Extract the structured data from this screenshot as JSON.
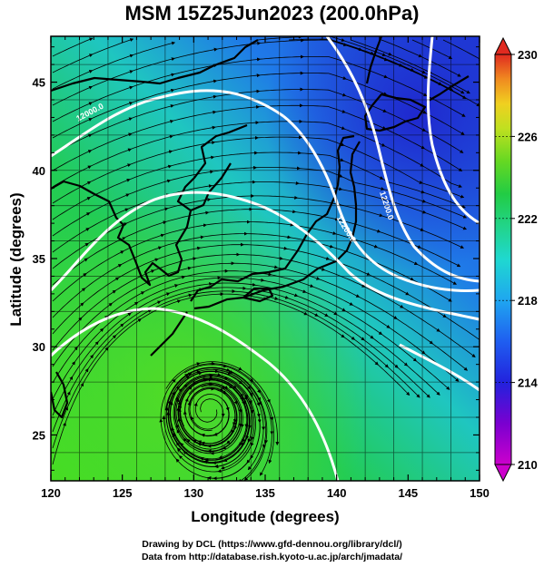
{
  "title": "MSM 15Z25Jun2023 (200.0hPa)",
  "xlabel": "Longitude (degrees)",
  "ylabel": "Latitude  (degrees)",
  "credits": {
    "line1": "Drawing by DCL (https://www.gfd-dennou.org/library/dcl/)",
    "line2": "Data from http://database.rish.kyoto-u.ac.jp/arch/jmadata/"
  },
  "map": {
    "lon_range": [
      120,
      150
    ],
    "lat_range": [
      22.4,
      47.6
    ],
    "x_ticks": [
      "120",
      "125",
      "130",
      "135",
      "140",
      "145",
      "150"
    ],
    "x_tick_values": [
      120,
      125,
      130,
      135,
      140,
      145,
      150
    ],
    "y_ticks": [
      "25",
      "30",
      "35",
      "40",
      "45"
    ],
    "y_tick_values": [
      25,
      30,
      35,
      40,
      45
    ],
    "grid": true,
    "shaded_field": "temperature",
    "streamlines": true,
    "contour_labels": [
      "12000.0",
      "12200.0",
      "12200.0"
    ],
    "contour_color": "#ffffff"
  },
  "colorbar": {
    "min": 210,
    "max": 230,
    "labels": [
      "230",
      "226",
      "222",
      "218",
      "214",
      "210"
    ],
    "label_values": [
      230,
      226,
      222,
      218,
      214,
      210
    ],
    "colors": [
      "#cc00cc",
      "#8a00d4",
      "#2222dd",
      "#1f5ef0",
      "#1fa6f0",
      "#1fd8d8",
      "#22d490",
      "#22cc44",
      "#55d622",
      "#a6e022",
      "#e0e020",
      "#f0b020",
      "#f06a20",
      "#e02a20"
    ]
  }
}
